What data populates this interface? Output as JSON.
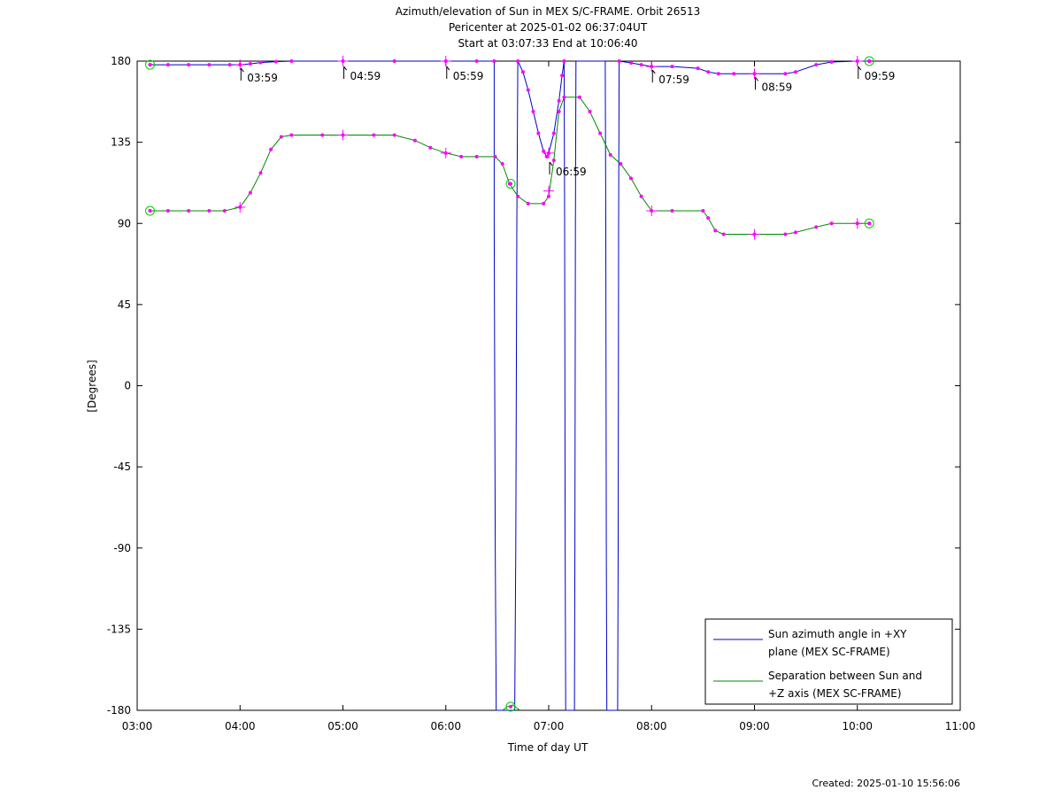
{
  "chart_data": {
    "type": "line",
    "title_lines": [
      "Azimuth/elevation of Sun in MEX S/C-FRAME.  Orbit 26513",
      "Pericenter at 2025-01-02 06:37:04UT",
      "Start at 03:07:33 End at 10:06:40"
    ],
    "xlabel": "Time of day UT",
    "ylabel": "[Degrees]",
    "xlim": [
      3.0,
      11.0
    ],
    "ylim": [
      -180,
      180
    ],
    "x_ticks": [
      3,
      4,
      5,
      6,
      7,
      8,
      9,
      10,
      11
    ],
    "x_tick_labels": [
      "03:00",
      "04:00",
      "05:00",
      "06:00",
      "07:00",
      "08:00",
      "09:00",
      "10:00",
      "11:00"
    ],
    "y_ticks": [
      180,
      135,
      90,
      45,
      0,
      -45,
      -90,
      -135,
      -180
    ],
    "y_tick_labels": [
      "180",
      "135",
      "90",
      "45",
      "0",
      "-45",
      "-90",
      "-135",
      "-180"
    ],
    "grid": false,
    "legend_position": "bottom-right",
    "footer": "Created: 2025-01-10 15:56:06",
    "hour_annotations": [
      {
        "label": "03:59",
        "x": 3.983,
        "y": 178
      },
      {
        "label": "04:59",
        "x": 4.983,
        "y": 179
      },
      {
        "label": "05:59",
        "x": 5.983,
        "y": 179
      },
      {
        "label": "06:59",
        "x": 6.983,
        "y": 126
      },
      {
        "label": "07:59",
        "x": 7.983,
        "y": 177
      },
      {
        "label": "08:59",
        "x": 8.983,
        "y": 173
      },
      {
        "label": "09:59",
        "x": 9.983,
        "y": 179
      }
    ],
    "series": [
      {
        "name": "Sun azimuth angle in +XY plane (MEX SC-FRAME)",
        "legend_lines": [
          "Sun azimuth angle in +XY",
          "plane (MEX SC-FRAME)"
        ],
        "color": "#0000cc",
        "segments": [
          [
            [
              3.125,
              178
            ],
            [
              3.3,
              178
            ],
            [
              3.5,
              178
            ],
            [
              3.7,
              178
            ],
            [
              3.9,
              178
            ],
            [
              4.0,
              178
            ],
            [
              4.1,
              178.5
            ],
            [
              4.2,
              179.2
            ],
            [
              4.35,
              179.7
            ],
            [
              4.5,
              180
            ],
            [
              5.0,
              180
            ],
            [
              5.5,
              180
            ],
            [
              6.0,
              180
            ],
            [
              6.3,
              180
            ],
            [
              6.47,
              180
            ]
          ],
          [
            [
              6.47,
              180
            ],
            [
              6.47,
              90
            ],
            [
              6.48,
              -90
            ],
            [
              6.49,
              -180
            ]
          ],
          [
            [
              6.49,
              -180
            ],
            [
              6.6,
              -180
            ],
            [
              6.67,
              -180
            ]
          ],
          [
            [
              6.67,
              -180
            ],
            [
              6.68,
              -90
            ],
            [
              6.69,
              90
            ],
            [
              6.7,
              180
            ]
          ],
          [
            [
              6.7,
              180
            ],
            [
              6.75,
              174
            ],
            [
              6.8,
              164
            ],
            [
              6.85,
              152
            ],
            [
              6.9,
              140
            ],
            [
              6.95,
              130
            ],
            [
              6.98,
              127
            ],
            [
              7.0,
              129
            ],
            [
              7.05,
              140
            ],
            [
              7.1,
              158
            ],
            [
              7.13,
              172
            ],
            [
              7.15,
              180
            ]
          ],
          [
            [
              7.15,
              180
            ],
            [
              7.155,
              90
            ],
            [
              7.16,
              -90
            ],
            [
              7.165,
              -180
            ]
          ],
          [
            [
              7.165,
              -180
            ],
            [
              7.25,
              -180
            ]
          ],
          [
            [
              7.25,
              -180
            ],
            [
              7.255,
              -90
            ],
            [
              7.26,
              90
            ],
            [
              7.265,
              180
            ]
          ],
          [
            [
              7.265,
              180
            ],
            [
              7.4,
              180
            ],
            [
              7.55,
              180
            ]
          ],
          [
            [
              7.55,
              180
            ],
            [
              7.555,
              90
            ],
            [
              7.56,
              -90
            ],
            [
              7.565,
              -180
            ]
          ],
          [
            [
              7.565,
              -180
            ],
            [
              7.67,
              -180
            ]
          ],
          [
            [
              7.67,
              -180
            ],
            [
              7.675,
              -90
            ],
            [
              7.68,
              90
            ],
            [
              7.685,
              180
            ]
          ],
          [
            [
              7.685,
              180
            ],
            [
              7.8,
              179
            ],
            [
              7.9,
              178
            ],
            [
              8.0,
              177
            ],
            [
              8.2,
              177
            ],
            [
              8.45,
              176
            ],
            [
              8.55,
              174
            ],
            [
              8.65,
              173
            ],
            [
              8.8,
              173
            ],
            [
              9.0,
              173
            ],
            [
              9.3,
              173
            ],
            [
              9.4,
              174
            ],
            [
              9.6,
              178
            ],
            [
              9.75,
              179.5
            ],
            [
              10.0,
              180
            ],
            [
              10.116,
              180
            ]
          ]
        ]
      },
      {
        "name": "Separation between Sun and +Z axis (MEX SC-FRAME)",
        "legend_lines": [
          "Separation between Sun and",
          "+Z axis (MEX SC-FRAME)"
        ],
        "color": "#008800",
        "segments": [
          [
            [
              3.125,
              97
            ],
            [
              3.3,
              97
            ],
            [
              3.5,
              97
            ],
            [
              3.7,
              97
            ],
            [
              3.85,
              97
            ],
            [
              4.0,
              99
            ],
            [
              4.1,
              107
            ],
            [
              4.2,
              118
            ],
            [
              4.3,
              131
            ],
            [
              4.4,
              138
            ],
            [
              4.5,
              139
            ],
            [
              4.8,
              139
            ],
            [
              5.0,
              139
            ],
            [
              5.3,
              139
            ],
            [
              5.5,
              139
            ],
            [
              5.7,
              136
            ],
            [
              5.85,
              132
            ],
            [
              6.0,
              129
            ],
            [
              6.15,
              127
            ],
            [
              6.3,
              127
            ],
            [
              6.48,
              127
            ],
            [
              6.55,
              123
            ],
            [
              6.62,
              112
            ],
            [
              6.7,
              105
            ],
            [
              6.8,
              101
            ],
            [
              6.95,
              101
            ],
            [
              7.0,
              105
            ],
            [
              7.05,
              125
            ],
            [
              7.1,
              152
            ],
            [
              7.15,
              160
            ],
            [
              7.3,
              160
            ],
            [
              7.4,
              152
            ],
            [
              7.5,
              140
            ],
            [
              7.6,
              128
            ],
            [
              7.7,
              123
            ],
            [
              7.8,
              115
            ],
            [
              7.9,
              105
            ],
            [
              8.0,
              97
            ],
            [
              8.2,
              97
            ],
            [
              8.5,
              97
            ],
            [
              8.55,
              93
            ],
            [
              8.62,
              86
            ],
            [
              8.7,
              84
            ],
            [
              9.0,
              84
            ],
            [
              9.3,
              84
            ],
            [
              9.4,
              85
            ],
            [
              9.6,
              88
            ],
            [
              9.75,
              90
            ],
            [
              10.0,
              90
            ],
            [
              10.116,
              90
            ]
          ],
          [
            [
              6.55,
              -180
            ],
            [
              6.6,
              -178
            ],
            [
              6.65,
              -177
            ],
            [
              6.72,
              -180
            ]
          ]
        ],
        "circle_markers": [
          [
            3.125,
            97
          ],
          [
            10.116,
            90
          ],
          [
            6.63,
            112
          ],
          [
            6.63,
            -178
          ]
        ],
        "cross_markers": [
          [
            4.0,
            99
          ],
          [
            5.0,
            139
          ],
          [
            6.0,
            129
          ],
          [
            7.0,
            108
          ],
          [
            8.0,
            97
          ],
          [
            9.0,
            84
          ],
          [
            10.0,
            90
          ]
        ]
      }
    ],
    "azimuth_circle_markers": [
      [
        3.125,
        178
      ],
      [
        10.116,
        180
      ]
    ],
    "azimuth_cross_markers": [
      [
        4.0,
        178
      ],
      [
        5.0,
        180
      ],
      [
        6.0,
        180
      ],
      [
        7.0,
        129
      ],
      [
        8.0,
        177
      ],
      [
        9.0,
        173
      ],
      [
        10.0,
        180
      ]
    ]
  }
}
